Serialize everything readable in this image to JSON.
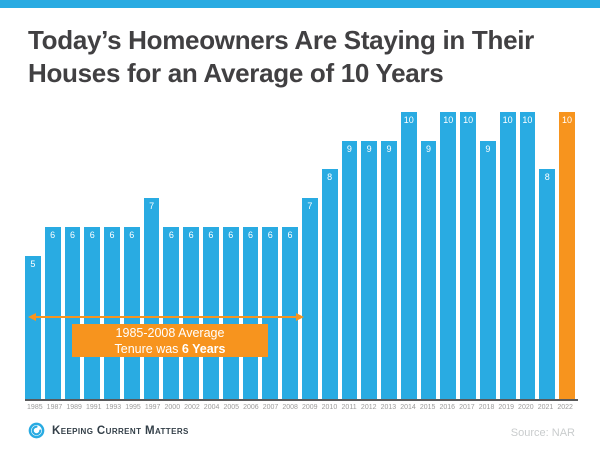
{
  "header": {
    "title_line1": "Today’s Homeowners Are Staying in Their",
    "title_line2": "Houses for an Average of 10 Years"
  },
  "chart_data": {
    "type": "bar",
    "title": "Today’s Homeowners Are Staying in Their Houses for an Average of 10 Years",
    "categories": [
      "1985",
      "1987",
      "1989",
      "1991",
      "1993",
      "1995",
      "1997",
      "2000",
      "2002",
      "2004",
      "2005",
      "2006",
      "2007",
      "2008",
      "2009",
      "2010",
      "2011",
      "2012",
      "2013",
      "2014",
      "2015",
      "2016",
      "2017",
      "2018",
      "2019",
      "2020",
      "2021",
      "2022"
    ],
    "values": [
      5,
      6,
      6,
      6,
      6,
      6,
      7,
      6,
      6,
      6,
      6,
      6,
      6,
      6,
      7,
      8,
      9,
      9,
      9,
      10,
      9,
      10,
      10,
      9,
      10,
      10,
      8,
      10
    ],
    "xlabel": "",
    "ylabel": "",
    "ylim": [
      0,
      10
    ],
    "grid": false,
    "legend": "none",
    "value_labels": "inside-top-white",
    "highlight_category": "2022",
    "annotation": {
      "line1": "1985-2008 Average",
      "line2_prefix": "Tenure was ",
      "line2_bold": "6 Years",
      "arrow_span_years": "1985-2008"
    }
  },
  "colors": {
    "bar_blue": "#29abe2",
    "bar_orange": "#f7941e",
    "title_text": "#414042",
    "axis_line": "#58595b",
    "tick_text": "#9b9b9b",
    "value_label_text": "#ffffff",
    "annotation_text": "#ffffff",
    "logo_text": "#333f48",
    "source_text": "#c9cccd"
  },
  "footer": {
    "brand": "Keeping Current Matters",
    "source": "Source: NAR"
  }
}
